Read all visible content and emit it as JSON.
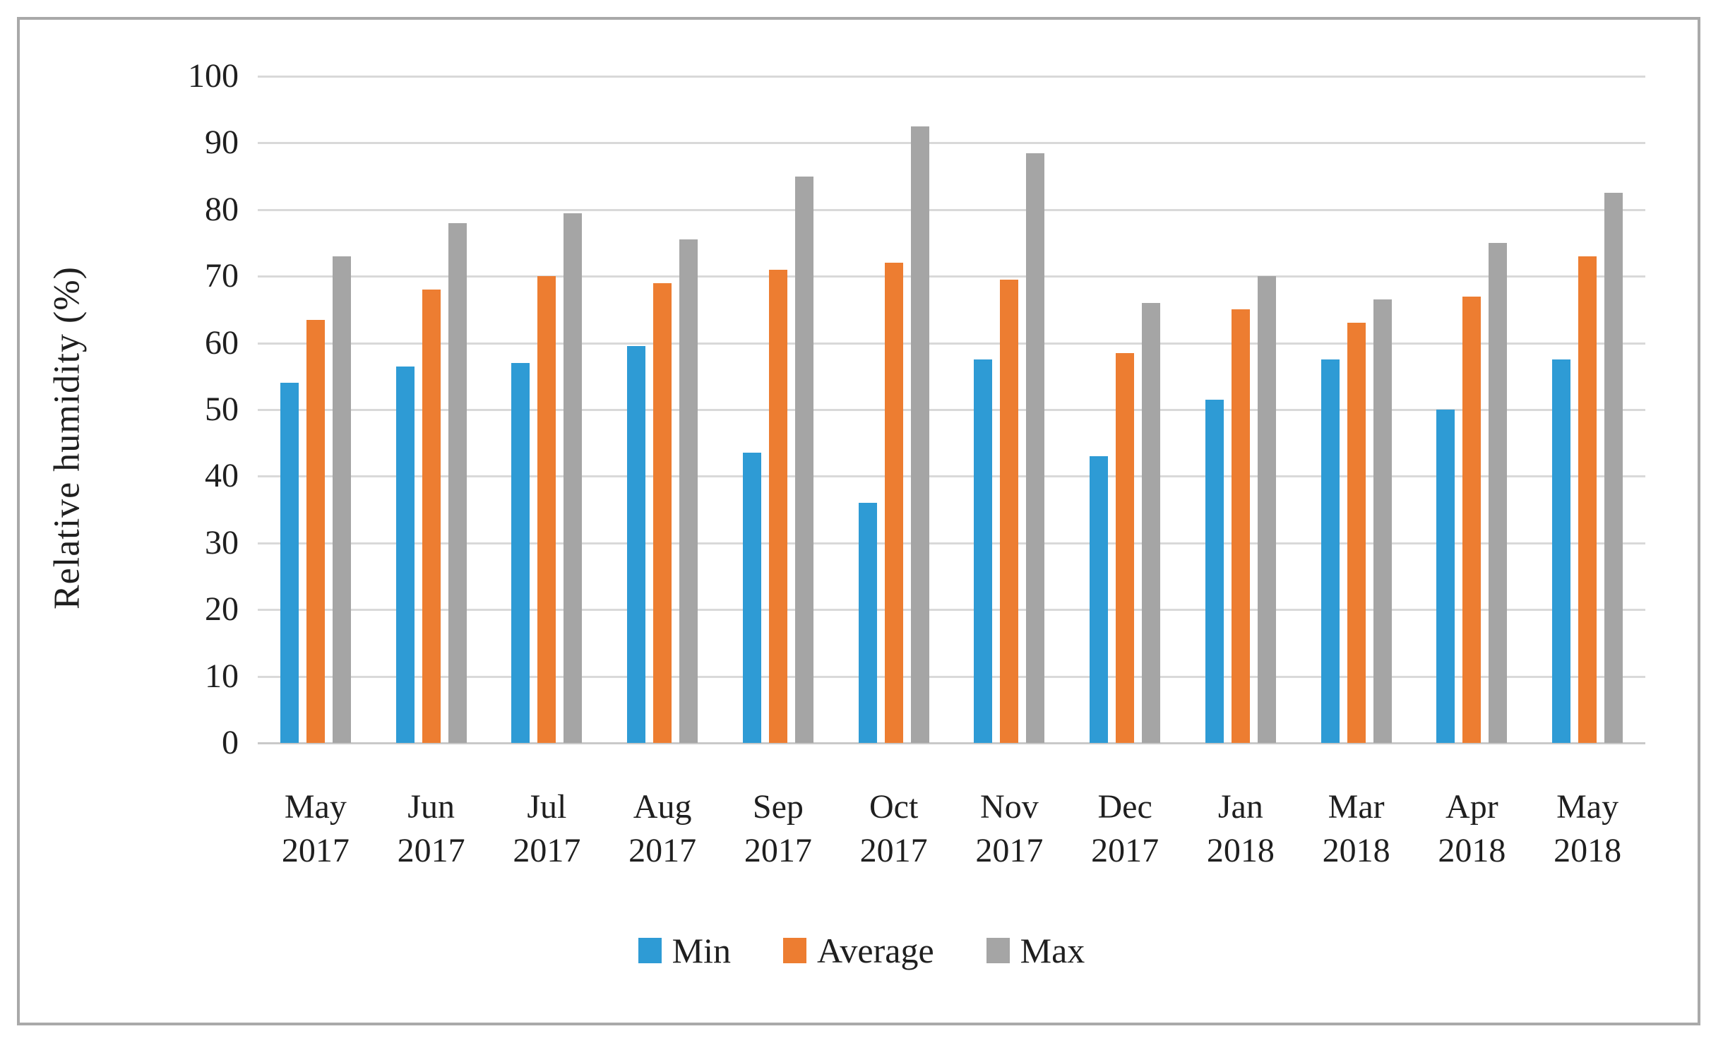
{
  "chart_data": {
    "type": "bar",
    "title": "",
    "xlabel": "",
    "ylabel": "Relative humidity (%)",
    "ylim": [
      0,
      100
    ],
    "yticks": [
      0,
      10,
      20,
      30,
      40,
      50,
      60,
      70,
      80,
      90,
      100
    ],
    "grid": true,
    "legend_position": "bottom",
    "categories": [
      {
        "month": "May",
        "year": "2017"
      },
      {
        "month": "Jun",
        "year": "2017"
      },
      {
        "month": "Jul",
        "year": "2017"
      },
      {
        "month": "Aug",
        "year": "2017"
      },
      {
        "month": "Sep",
        "year": "2017"
      },
      {
        "month": "Oct",
        "year": "2017"
      },
      {
        "month": "Nov",
        "year": "2017"
      },
      {
        "month": "Dec",
        "year": "2017"
      },
      {
        "month": "Jan",
        "year": "2018"
      },
      {
        "month": "Mar",
        "year": "2018"
      },
      {
        "month": "Apr",
        "year": "2018"
      },
      {
        "month": "May",
        "year": "2018"
      }
    ],
    "series": [
      {
        "name": "Min",
        "color": "#2E9BD5",
        "values": [
          54,
          56.5,
          57,
          59.5,
          43.5,
          36,
          57.5,
          43,
          51.5,
          57.5,
          50,
          57.5
        ]
      },
      {
        "name": "Average",
        "color": "#ED7D31",
        "values": [
          63.5,
          68,
          70,
          69,
          71,
          72,
          69.5,
          58.5,
          65,
          63,
          67,
          73
        ]
      },
      {
        "name": "Max",
        "color": "#A5A5A5",
        "values": [
          73,
          78,
          79.5,
          75.5,
          85,
          92.5,
          88.5,
          66,
          70,
          66.5,
          75,
          82.5
        ]
      }
    ]
  },
  "style_colors": {
    "gridline": "#d9d9d9",
    "axis_line": "#c9c9c9",
    "border": "#a9a9a9",
    "text": "#1f1f1f"
  }
}
